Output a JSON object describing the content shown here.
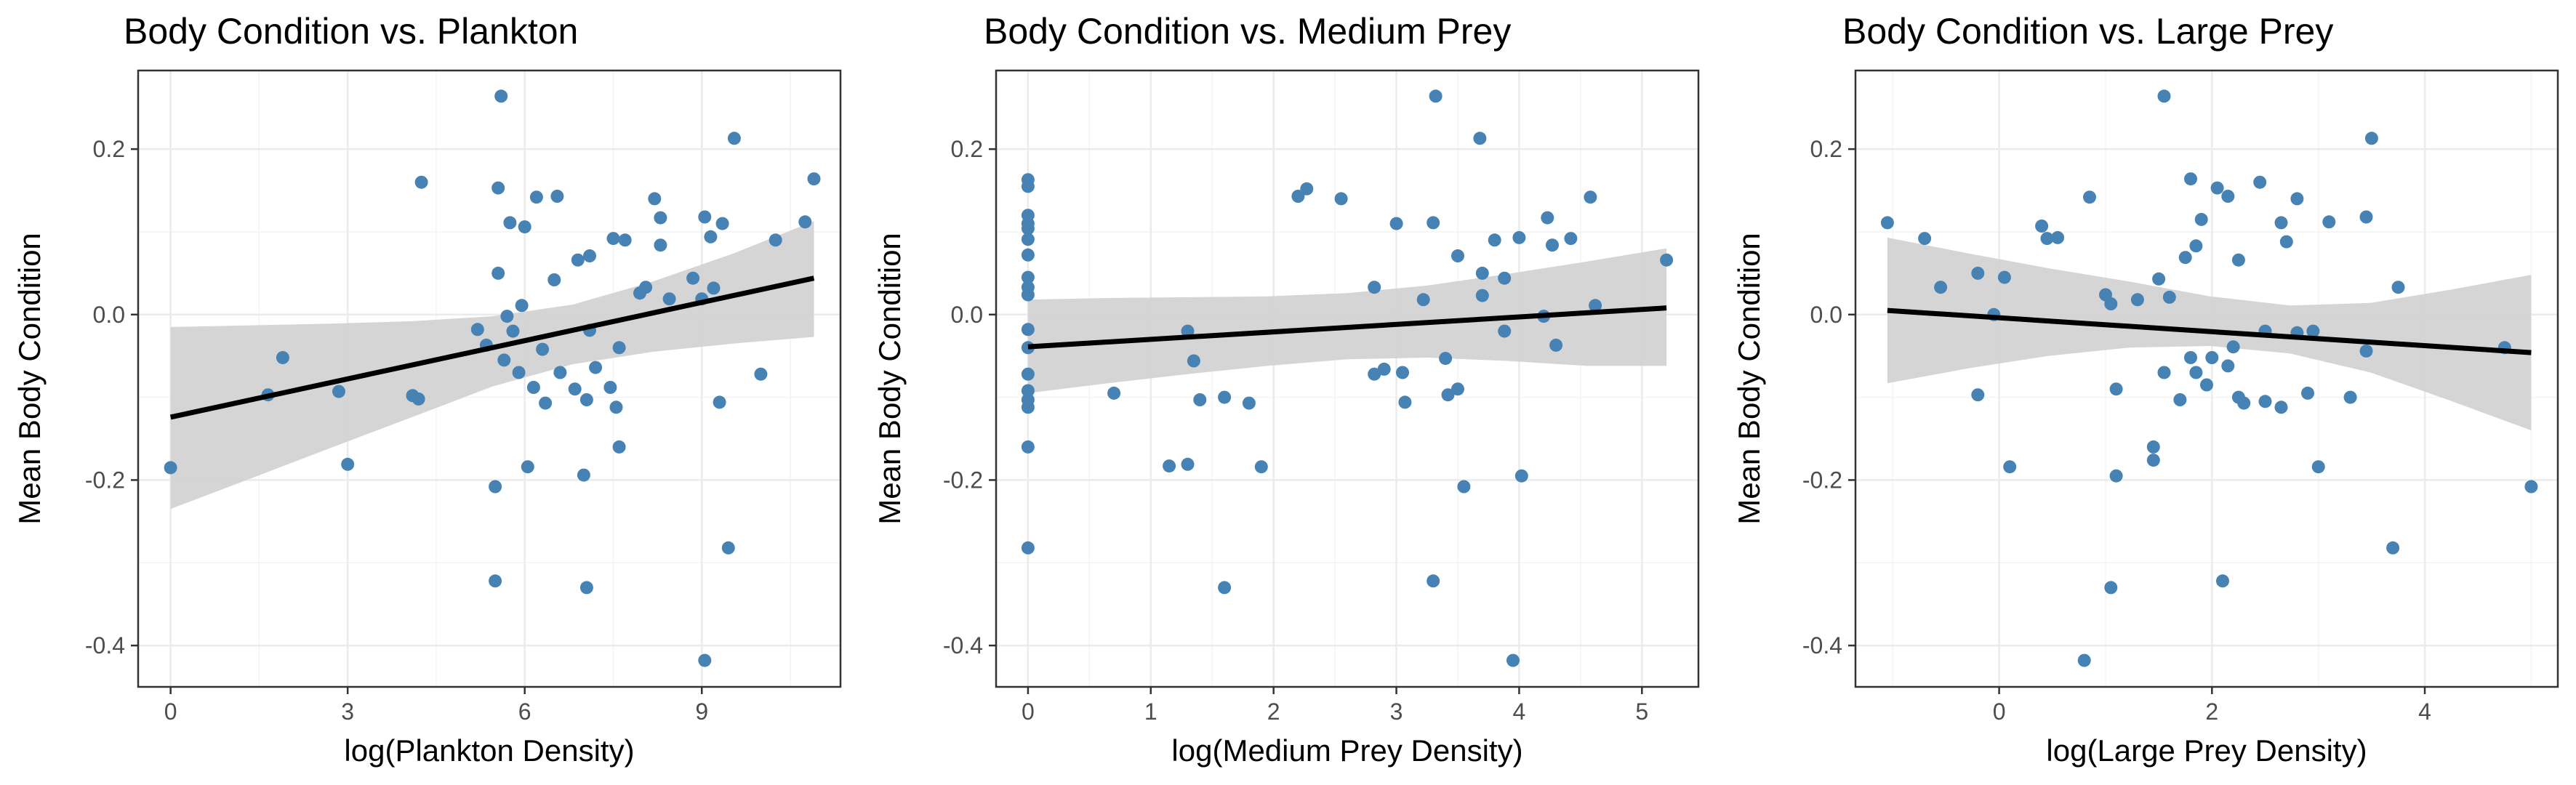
{
  "colors": {
    "point": "#4682b4",
    "fit_line": "#000000",
    "ribbon": "#d3d3d3",
    "grid_major": "#ebebeb",
    "grid_minor": "#f4f4f4",
    "panel_border": "#333333",
    "tick_text": "#4d4d4d"
  },
  "chart_data": [
    {
      "type": "scatter",
      "title": "Body Condition vs. Plankton",
      "xlabel": "log(Plankton Density)",
      "ylabel": "Mean Body Condition",
      "xlim": [
        -0.55,
        11.35
      ],
      "ylim": [
        -0.45,
        0.295
      ],
      "xticks": [
        0,
        3,
        6,
        9
      ],
      "yticks": [
        -0.4,
        -0.2,
        0.0,
        0.2
      ],
      "xtick_labels": [
        "0",
        "3",
        "6",
        "9"
      ],
      "ytick_labels": [
        "-0.4",
        "-0.2",
        "0.0",
        "0.2"
      ],
      "grid": true,
      "points": [
        [
          0,
          -0.185
        ],
        [
          1.65,
          -0.097
        ],
        [
          1.9,
          -0.052
        ],
        [
          2.85,
          -0.093
        ],
        [
          3.0,
          -0.181
        ],
        [
          4.1,
          -0.098
        ],
        [
          4.2,
          -0.102
        ],
        [
          4.25,
          0.16
        ],
        [
          5.2,
          -0.018
        ],
        [
          5.35,
          -0.037
        ],
        [
          5.5,
          -0.208
        ],
        [
          5.5,
          -0.322
        ],
        [
          5.55,
          0.153
        ],
        [
          5.55,
          0.05
        ],
        [
          5.6,
          0.264
        ],
        [
          5.65,
          -0.055
        ],
        [
          5.7,
          -0.002
        ],
        [
          5.75,
          0.111
        ],
        [
          5.8,
          -0.02
        ],
        [
          5.9,
          -0.07
        ],
        [
          5.95,
          0.011
        ],
        [
          6.0,
          0.106
        ],
        [
          6.05,
          -0.184
        ],
        [
          6.15,
          -0.088
        ],
        [
          6.2,
          0.142
        ],
        [
          6.3,
          -0.042
        ],
        [
          6.35,
          -0.107
        ],
        [
          6.5,
          0.042
        ],
        [
          6.55,
          0.143
        ],
        [
          6.6,
          -0.07
        ],
        [
          6.85,
          -0.09
        ],
        [
          6.9,
          0.066
        ],
        [
          7.0,
          -0.194
        ],
        [
          7.05,
          -0.103
        ],
        [
          7.05,
          -0.33
        ],
        [
          7.1,
          0.071
        ],
        [
          7.1,
          -0.019
        ],
        [
          7.2,
          -0.064
        ],
        [
          7.45,
          -0.088
        ],
        [
          7.5,
          0.092
        ],
        [
          7.55,
          -0.112
        ],
        [
          7.6,
          -0.04
        ],
        [
          7.6,
          -0.16
        ],
        [
          7.7,
          0.09
        ],
        [
          7.95,
          0.026
        ],
        [
          8.05,
          0.033
        ],
        [
          8.2,
          0.14
        ],
        [
          8.3,
          0.117
        ],
        [
          8.3,
          0.084
        ],
        [
          8.45,
          0.019
        ],
        [
          8.85,
          0.044
        ],
        [
          9.0,
          0.019
        ],
        [
          9.05,
          0.118
        ],
        [
          9.05,
          -0.418
        ],
        [
          9.15,
          0.094
        ],
        [
          9.2,
          0.032
        ],
        [
          9.3,
          -0.106
        ],
        [
          9.35,
          0.11
        ],
        [
          9.45,
          -0.282
        ],
        [
          9.55,
          0.213
        ],
        [
          10.0,
          -0.072
        ],
        [
          10.25,
          0.09
        ],
        [
          10.75,
          0.112
        ],
        [
          10.9,
          0.164
        ]
      ],
      "fit": {
        "x": [
          0,
          10.9
        ],
        "y": [
          -0.124,
          0.044
        ]
      },
      "ribbon": {
        "x": [
          0,
          1.36,
          2.72,
          4.09,
          5.45,
          6.81,
          8.17,
          9.54,
          10.9
        ],
        "lower": [
          -0.235,
          -0.198,
          -0.161,
          -0.124,
          -0.087,
          -0.06,
          -0.045,
          -0.035,
          -0.027
        ],
        "upper": [
          -0.015,
          -0.013,
          -0.011,
          -0.008,
          -0.002,
          0.012,
          0.04,
          0.074,
          0.113
        ]
      }
    },
    {
      "type": "scatter",
      "title": "Body Condition vs. Medium Prey",
      "xlabel": "log(Medium Prey Density)",
      "ylabel": "Mean Body Condition",
      "xlim": [
        -0.26,
        5.46
      ],
      "ylim": [
        -0.45,
        0.295
      ],
      "xticks": [
        0,
        1,
        2,
        3,
        4,
        5
      ],
      "yticks": [
        -0.4,
        -0.2,
        0.0,
        0.2
      ],
      "xtick_labels": [
        "0",
        "1",
        "2",
        "3",
        "4",
        "5"
      ],
      "ytick_labels": [
        "-0.4",
        "-0.2",
        "0.0",
        "0.2"
      ],
      "grid": true,
      "points": [
        [
          0,
          0.163
        ],
        [
          0,
          0.155
        ],
        [
          0,
          0.12
        ],
        [
          0,
          0.11
        ],
        [
          0,
          0.104
        ],
        [
          0,
          0.091
        ],
        [
          0,
          0.072
        ],
        [
          0,
          0.045
        ],
        [
          0,
          0.033
        ],
        [
          0,
          0.024
        ],
        [
          0,
          -0.018
        ],
        [
          0,
          -0.04
        ],
        [
          0,
          -0.072
        ],
        [
          0,
          -0.092
        ],
        [
          0,
          -0.103
        ],
        [
          0,
          -0.112
        ],
        [
          0,
          -0.16
        ],
        [
          0,
          -0.282
        ],
        [
          0.7,
          -0.095
        ],
        [
          1.15,
          -0.183
        ],
        [
          1.3,
          -0.02
        ],
        [
          1.3,
          -0.181
        ],
        [
          1.35,
          -0.056
        ],
        [
          1.4,
          -0.103
        ],
        [
          1.6,
          -0.1
        ],
        [
          1.6,
          -0.33
        ],
        [
          1.8,
          -0.107
        ],
        [
          1.9,
          -0.184
        ],
        [
          2.2,
          0.143
        ],
        [
          2.27,
          0.152
        ],
        [
          2.55,
          0.14
        ],
        [
          2.82,
          0.033
        ],
        [
          2.82,
          -0.072
        ],
        [
          2.9,
          -0.066
        ],
        [
          3.0,
          0.11
        ],
        [
          3.05,
          -0.07
        ],
        [
          3.07,
          -0.106
        ],
        [
          3.22,
          0.018
        ],
        [
          3.3,
          0.111
        ],
        [
          3.3,
          -0.322
        ],
        [
          3.32,
          0.264
        ],
        [
          3.4,
          -0.053
        ],
        [
          3.42,
          -0.097
        ],
        [
          3.5,
          0.071
        ],
        [
          3.5,
          -0.09
        ],
        [
          3.55,
          -0.208
        ],
        [
          3.68,
          0.213
        ],
        [
          3.7,
          0.023
        ],
        [
          3.7,
          0.05
        ],
        [
          3.8,
          0.09
        ],
        [
          3.88,
          0.044
        ],
        [
          3.88,
          -0.02
        ],
        [
          3.95,
          -0.418
        ],
        [
          4.0,
          0.093
        ],
        [
          4.02,
          -0.195
        ],
        [
          4.2,
          -0.002
        ],
        [
          4.23,
          0.117
        ],
        [
          4.27,
          0.084
        ],
        [
          4.3,
          -0.037
        ],
        [
          4.42,
          0.092
        ],
        [
          4.58,
          0.142
        ],
        [
          4.62,
          0.011
        ],
        [
          5.2,
          0.066
        ]
      ],
      "fit": {
        "x": [
          0,
          5.2
        ],
        "y": [
          -0.039,
          0.008
        ]
      },
      "ribbon": {
        "x": [
          0,
          0.65,
          1.3,
          1.95,
          2.6,
          3.25,
          3.9,
          4.55,
          5.2
        ],
        "lower": [
          -0.095,
          -0.083,
          -0.072,
          -0.062,
          -0.054,
          -0.052,
          -0.056,
          -0.062,
          -0.062
        ],
        "upper": [
          0.018,
          0.02,
          0.021,
          0.022,
          0.026,
          0.035,
          0.049,
          0.064,
          0.08
        ]
      }
    },
    {
      "type": "scatter",
      "title": "Body Condition vs. Large Prey",
      "xlabel": "log(Large Prey Density)",
      "ylabel": "Mean Body Condition",
      "xlim": [
        -1.35,
        5.25
      ],
      "ylim": [
        -0.45,
        0.295
      ],
      "xticks": [
        0,
        2,
        4
      ],
      "yticks": [
        -0.4,
        -0.2,
        0.0,
        0.2
      ],
      "xtick_labels": [
        "0",
        "2",
        "4"
      ],
      "ytick_labels": [
        "-0.4",
        "-0.2",
        "0.0",
        "0.2"
      ],
      "grid": true,
      "points": [
        [
          -1.05,
          0.111
        ],
        [
          -0.7,
          0.092
        ],
        [
          -0.55,
          0.033
        ],
        [
          -0.2,
          0.05
        ],
        [
          -0.2,
          -0.097
        ],
        [
          -0.05,
          0.0
        ],
        [
          0.05,
          0.045
        ],
        [
          0.1,
          -0.184
        ],
        [
          0.4,
          0.107
        ],
        [
          0.45,
          0.092
        ],
        [
          0.55,
          0.093
        ],
        [
          0.8,
          -0.418
        ],
        [
          0.85,
          0.142
        ],
        [
          1.0,
          0.024
        ],
        [
          1.05,
          0.013
        ],
        [
          1.05,
          -0.33
        ],
        [
          1.1,
          -0.195
        ],
        [
          1.1,
          -0.09
        ],
        [
          1.3,
          0.018
        ],
        [
          1.45,
          -0.176
        ],
        [
          1.45,
          -0.16
        ],
        [
          1.5,
          0.043
        ],
        [
          1.55,
          0.264
        ],
        [
          1.55,
          -0.07
        ],
        [
          1.6,
          0.021
        ],
        [
          1.7,
          -0.103
        ],
        [
          1.75,
          0.069
        ],
        [
          1.8,
          0.164
        ],
        [
          1.8,
          -0.052
        ],
        [
          1.85,
          0.083
        ],
        [
          1.85,
          -0.07
        ],
        [
          1.9,
          0.115
        ],
        [
          1.95,
          -0.085
        ],
        [
          2.0,
          -0.052
        ],
        [
          2.05,
          0.153
        ],
        [
          2.1,
          -0.322
        ],
        [
          2.15,
          -0.062
        ],
        [
          2.15,
          0.143
        ],
        [
          2.2,
          -0.039
        ],
        [
          2.25,
          -0.1
        ],
        [
          2.25,
          0.066
        ],
        [
          2.3,
          -0.107
        ],
        [
          2.45,
          0.16
        ],
        [
          2.5,
          -0.105
        ],
        [
          2.5,
          -0.02
        ],
        [
          2.65,
          0.111
        ],
        [
          2.65,
          -0.112
        ],
        [
          2.7,
          0.088
        ],
        [
          2.8,
          0.14
        ],
        [
          2.8,
          -0.022
        ],
        [
          2.9,
          -0.095
        ],
        [
          2.95,
          -0.02
        ],
        [
          3.0,
          -0.184
        ],
        [
          3.1,
          0.112
        ],
        [
          3.3,
          -0.1
        ],
        [
          3.45,
          0.118
        ],
        [
          3.45,
          -0.044
        ],
        [
          3.5,
          0.213
        ],
        [
          3.7,
          -0.282
        ],
        [
          3.75,
          0.033
        ],
        [
          4.75,
          -0.04
        ],
        [
          5.0,
          -0.208
        ]
      ],
      "fit": {
        "x": [
          -1.05,
          5.0
        ],
        "y": [
          0.005,
          -0.046
        ]
      },
      "ribbon": {
        "x": [
          -1.05,
          -0.29,
          0.46,
          1.22,
          1.98,
          2.73,
          3.49,
          4.24,
          5.0
        ],
        "lower": [
          -0.083,
          -0.065,
          -0.05,
          -0.04,
          -0.038,
          -0.047,
          -0.07,
          -0.104,
          -0.14
        ],
        "upper": [
          0.093,
          0.074,
          0.056,
          0.04,
          0.022,
          0.011,
          0.014,
          0.03,
          0.048
        ]
      }
    }
  ]
}
